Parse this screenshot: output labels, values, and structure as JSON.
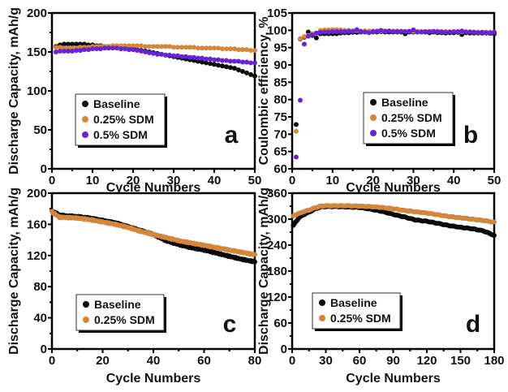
{
  "colors": {
    "Baseline": "#0a0a0a",
    "0.25% SDM": "#d4873a",
    "0.5% SDM": "#6a22d8"
  },
  "chart_data": [
    {
      "panel": "a",
      "type": "scatter",
      "xlabel": "Cycle Numbers",
      "ylabel": "Discharge Capacity, mAh/g",
      "xlim": [
        0,
        50
      ],
      "ylim": [
        0,
        200
      ],
      "xticks": [
        0,
        10,
        20,
        30,
        40,
        50
      ],
      "yticks": [
        0,
        50,
        100,
        150,
        200
      ],
      "legend": [
        "Baseline",
        "0.25% SDM",
        "0.5% SDM"
      ],
      "legend_position": "center-left",
      "series": [
        {
          "name": "Baseline",
          "x": [
            1,
            2,
            3,
            4,
            5,
            6,
            7,
            8,
            9,
            10,
            11,
            12,
            13,
            14,
            15,
            16,
            17,
            18,
            19,
            20,
            21,
            22,
            23,
            24,
            25,
            26,
            27,
            28,
            29,
            30,
            31,
            32,
            33,
            34,
            35,
            36,
            37,
            38,
            39,
            40,
            41,
            42,
            43,
            44,
            45,
            46,
            47,
            48,
            49,
            50
          ],
          "y": [
            157,
            159,
            160,
            160,
            160,
            160,
            160,
            160,
            159,
            159,
            158,
            158,
            157,
            157,
            157,
            156,
            156,
            155,
            155,
            154,
            153,
            152,
            151,
            150,
            149,
            148,
            147,
            146,
            145,
            144,
            143,
            142,
            141,
            140,
            139,
            138,
            137,
            136,
            135,
            134,
            133,
            132,
            131,
            130,
            129,
            127,
            125,
            123,
            121,
            119
          ]
        },
        {
          "name": "0.25% SDM",
          "x": [
            1,
            2,
            3,
            4,
            5,
            6,
            7,
            8,
            9,
            10,
            11,
            12,
            13,
            14,
            15,
            16,
            17,
            18,
            19,
            20,
            21,
            22,
            23,
            24,
            25,
            26,
            27,
            28,
            29,
            30,
            31,
            32,
            33,
            34,
            35,
            36,
            37,
            38,
            39,
            40,
            41,
            42,
            43,
            44,
            45,
            46,
            47,
            48,
            49,
            50
          ],
          "y": [
            156,
            156,
            155,
            155,
            155,
            155,
            156,
            156,
            156,
            157,
            157,
            157,
            157,
            157,
            158,
            158,
            158,
            158,
            158,
            158,
            158,
            158,
            157,
            157,
            157,
            157,
            157,
            157,
            157,
            156,
            156,
            156,
            156,
            156,
            156,
            155,
            155,
            155,
            155,
            155,
            155,
            154,
            154,
            154,
            154,
            153,
            153,
            153,
            152,
            152
          ]
        },
        {
          "name": "0.5% SDM",
          "x": [
            1,
            2,
            3,
            4,
            5,
            6,
            7,
            8,
            9,
            10,
            11,
            12,
            13,
            14,
            15,
            16,
            17,
            18,
            19,
            20,
            21,
            22,
            23,
            24,
            25,
            26,
            27,
            28,
            29,
            30,
            31,
            32,
            33,
            34,
            35,
            36,
            37,
            38,
            39,
            40,
            41,
            42,
            43,
            44,
            45,
            46,
            47,
            48,
            49,
            50
          ],
          "y": [
            150,
            151,
            151,
            151,
            151,
            152,
            152,
            153,
            153,
            154,
            154,
            154,
            155,
            155,
            155,
            155,
            154,
            154,
            153,
            153,
            152,
            151,
            150,
            149,
            148,
            147,
            147,
            146,
            146,
            145,
            145,
            144,
            144,
            143,
            143,
            142,
            142,
            141,
            141,
            140,
            140,
            139,
            139,
            138,
            138,
            138,
            137,
            137,
            136,
            136
          ]
        }
      ],
      "annotation": "a"
    },
    {
      "panel": "b",
      "type": "scatter",
      "xlabel": "Cycle Numbers",
      "ylabel": "Coulombic efficiency, %",
      "xlim": [
        0,
        50
      ],
      "ylim": [
        60,
        105
      ],
      "xticks": [
        0,
        10,
        20,
        30,
        40,
        50
      ],
      "yticks": [
        60,
        65,
        70,
        75,
        80,
        85,
        90,
        95,
        100,
        105
      ],
      "legend": [
        "Baseline",
        "0.25% SDM",
        "0.5% SDM"
      ],
      "legend_position": "center-right",
      "series": [
        {
          "name": "Baseline",
          "x": [
            1,
            2,
            3,
            4,
            5,
            6,
            7,
            8,
            9,
            10,
            11,
            12,
            13,
            14,
            15,
            16,
            17,
            18,
            19,
            20,
            21,
            22,
            23,
            24,
            25,
            26,
            27,
            28,
            29,
            30,
            31,
            32,
            33,
            34,
            35,
            36,
            37,
            38,
            39,
            40,
            41,
            42,
            43,
            44,
            45,
            46,
            47,
            48,
            49,
            50
          ],
          "y": [
            72.8,
            97.5,
            98.0,
            99.5,
            98.5,
            97.8,
            99.0,
            99.0,
            99.0,
            99.0,
            99.0,
            99.2,
            99.3,
            99.3,
            99.4,
            99.4,
            99.5,
            99.5,
            99.5,
            99.5,
            99.5,
            99.6,
            99.5,
            99.5,
            99.5,
            99.5,
            99.5,
            99.0,
            99.5,
            99.5,
            99.5,
            99.5,
            99.5,
            99.3,
            99.5,
            99.3,
            99.3,
            99.2,
            99.3,
            99.3,
            99.4,
            98.8,
            99.3,
            99.2,
            99.2,
            99.2,
            99.2,
            99.2,
            99.1,
            99.0
          ]
        },
        {
          "name": "0.25% SDM",
          "x": [
            1,
            2,
            3,
            4,
            5,
            6,
            7,
            8,
            9,
            10,
            11,
            12,
            13,
            14,
            15,
            16,
            17,
            18,
            19,
            20,
            21,
            22,
            23,
            24,
            25,
            26,
            27,
            28,
            29,
            30,
            31,
            32,
            33,
            34,
            35,
            36,
            37,
            38,
            39,
            40,
            41,
            42,
            43,
            44,
            45,
            46,
            47,
            48,
            49,
            50
          ],
          "y": [
            70.8,
            97.6,
            98.2,
            98.5,
            99.0,
            99.2,
            100.0,
            100.1,
            100.1,
            100.2,
            100.2,
            100.1,
            100.0,
            100.0,
            99.9,
            99.9,
            99.8,
            99.8,
            99.8,
            99.8,
            99.8,
            99.8,
            99.8,
            99.8,
            99.8,
            99.8,
            99.7,
            99.7,
            99.7,
            99.7,
            99.7,
            99.7,
            99.7,
            99.7,
            99.7,
            99.7,
            99.7,
            99.6,
            99.6,
            99.6,
            99.6,
            99.6,
            99.6,
            99.6,
            99.5,
            99.5,
            99.5,
            99.5,
            99.5,
            99.5
          ]
        },
        {
          "name": "0.5% SDM",
          "x": [
            1,
            2,
            3,
            4,
            5,
            6,
            7,
            8,
            9,
            10,
            11,
            12,
            13,
            14,
            15,
            16,
            17,
            18,
            19,
            20,
            21,
            22,
            23,
            24,
            25,
            26,
            27,
            28,
            29,
            30,
            31,
            32,
            33,
            34,
            35,
            36,
            37,
            38,
            39,
            40,
            41,
            42,
            43,
            44,
            45,
            46,
            47,
            48,
            49,
            50
          ],
          "y": [
            63.4,
            79.8,
            96.0,
            98.3,
            98.6,
            99.2,
            99.4,
            99.5,
            99.5,
            99.6,
            99.6,
            99.6,
            99.6,
            99.7,
            99.6,
            100.2,
            99.6,
            99.5,
            99.3,
            99.6,
            99.7,
            100.0,
            99.7,
            99.8,
            99.6,
            99.6,
            99.7,
            99.6,
            99.7,
            100.1,
            99.5,
            99.5,
            99.6,
            99.6,
            99.7,
            99.6,
            99.5,
            99.5,
            99.5,
            99.6,
            99.6,
            99.8,
            99.5,
            99.5,
            99.5,
            99.3,
            99.4,
            99.3,
            99.2,
            99.4
          ]
        }
      ],
      "annotation": "b"
    },
    {
      "panel": "c",
      "type": "scatter",
      "xlabel": "Cycle Numbers",
      "ylabel": "Discharge Capacity, mAh/g",
      "xlim": [
        0,
        80
      ],
      "ylim": [
        0,
        200
      ],
      "xticks": [
        0,
        20,
        40,
        60,
        80
      ],
      "yticks": [
        0,
        40,
        80,
        120,
        160,
        200
      ],
      "legend": [
        "Baseline",
        "0.25% SDM"
      ],
      "legend_position": "bottom-left",
      "series": [
        {
          "name": "Baseline",
          "x": [
            0,
            3,
            5,
            10,
            15,
            20,
            25,
            30,
            35,
            40,
            45,
            50,
            55,
            60,
            65,
            70,
            75,
            80
          ],
          "y": [
            177,
            172,
            171,
            170,
            168,
            165,
            162,
            157,
            152,
            147,
            139,
            134,
            130,
            127,
            123,
            119,
            115,
            112
          ]
        },
        {
          "name": "0.25% SDM",
          "x": [
            0,
            3,
            5,
            10,
            15,
            20,
            25,
            30,
            35,
            40,
            45,
            50,
            55,
            60,
            65,
            70,
            75,
            80
          ],
          "y": [
            176,
            169,
            169,
            168,
            166,
            163,
            160,
            156,
            151,
            147,
            143,
            139,
            136,
            133,
            130,
            127,
            124,
            121
          ]
        }
      ],
      "annotation": "c"
    },
    {
      "panel": "d",
      "type": "scatter",
      "xlabel": "Cycle Numbers",
      "ylabel": "Discharge Capacity, mAh/g",
      "xlim": [
        0,
        180
      ],
      "ylim": [
        0,
        360
      ],
      "xticks": [
        0,
        30,
        60,
        90,
        120,
        150,
        180
      ],
      "yticks": [
        0,
        60,
        120,
        180,
        240,
        300,
        360
      ],
      "legend": [
        "Baseline",
        "0.25% SDM"
      ],
      "legend_position": "bottom-left",
      "series": [
        {
          "name": "Baseline",
          "x": [
            1,
            3,
            6,
            10,
            15,
            20,
            25,
            30,
            40,
            50,
            60,
            70,
            80,
            90,
            100,
            110,
            120,
            130,
            140,
            150,
            160,
            170,
            175,
            180
          ],
          "y": [
            285,
            293,
            303,
            310,
            316,
            323,
            328,
            329,
            329,
            328,
            327,
            323,
            318,
            311,
            305,
            298,
            295,
            290,
            285,
            281,
            278,
            273,
            268,
            262
          ]
        },
        {
          "name": "0.25% SDM",
          "x": [
            1,
            3,
            6,
            10,
            15,
            20,
            25,
            30,
            40,
            50,
            60,
            70,
            80,
            90,
            100,
            110,
            120,
            130,
            140,
            150,
            160,
            170,
            175,
            180
          ],
          "y": [
            307,
            310,
            313,
            317,
            321,
            326,
            330,
            331,
            331,
            331,
            330,
            329,
            327,
            324,
            320,
            317,
            314,
            310,
            306,
            303,
            300,
            297,
            295,
            293
          ]
        }
      ],
      "annotation": "d"
    }
  ]
}
